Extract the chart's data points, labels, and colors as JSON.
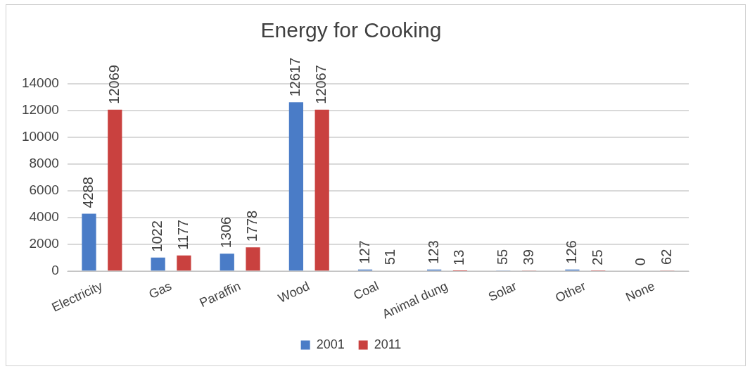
{
  "chart_data": {
    "type": "bar",
    "title": "Energy for Cooking",
    "categories": [
      "Electricity",
      "Gas",
      "Paraffin",
      "Wood",
      "Coal",
      "Animal dung",
      "Solar",
      "Other",
      "None"
    ],
    "series": [
      {
        "name": "2001",
        "color": "#4a7cc7",
        "values": [
          4288,
          1022,
          1306,
          12617,
          127,
          123,
          55,
          126,
          0
        ]
      },
      {
        "name": "2011",
        "color": "#c9413f",
        "values": [
          12069,
          1177,
          1778,
          12067,
          51,
          13,
          39,
          25,
          62
        ]
      }
    ],
    "ylim": [
      0,
      14000
    ],
    "yticks": [
      0,
      2000,
      4000,
      6000,
      8000,
      10000,
      12000,
      14000
    ],
    "grid": "y",
    "legend": "bottom",
    "data_labels": true
  }
}
